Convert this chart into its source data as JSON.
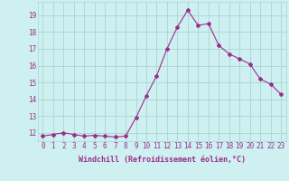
{
  "x": [
    0,
    1,
    2,
    3,
    4,
    5,
    6,
    7,
    8,
    9,
    10,
    11,
    12,
    13,
    14,
    15,
    16,
    17,
    18,
    19,
    20,
    21,
    22,
    23
  ],
  "y": [
    11.8,
    11.9,
    12.0,
    11.9,
    11.8,
    11.85,
    11.8,
    11.75,
    11.8,
    12.9,
    14.2,
    15.4,
    17.0,
    18.3,
    19.3,
    18.4,
    18.5,
    17.2,
    16.7,
    16.4,
    16.1,
    15.2,
    14.9,
    14.3
  ],
  "line_color": "#9b2d8e",
  "marker": "D",
  "marker_size": 2.0,
  "bg_color": "#cef0f0",
  "grid_color": "#aad4d4",
  "xlabel": "Windchill (Refroidissement éolien,°C)",
  "xlabel_fontsize": 6.0,
  "tick_color": "#9b2d8e",
  "tick_fontsize": 5.5,
  "ylim": [
    11.5,
    19.8
  ],
  "xlim": [
    -0.5,
    23.5
  ],
  "yticks": [
    12,
    13,
    14,
    15,
    16,
    17,
    18,
    19
  ],
  "xticks": [
    0,
    1,
    2,
    3,
    4,
    5,
    6,
    7,
    8,
    9,
    10,
    11,
    12,
    13,
    14,
    15,
    16,
    17,
    18,
    19,
    20,
    21,
    22,
    23
  ]
}
